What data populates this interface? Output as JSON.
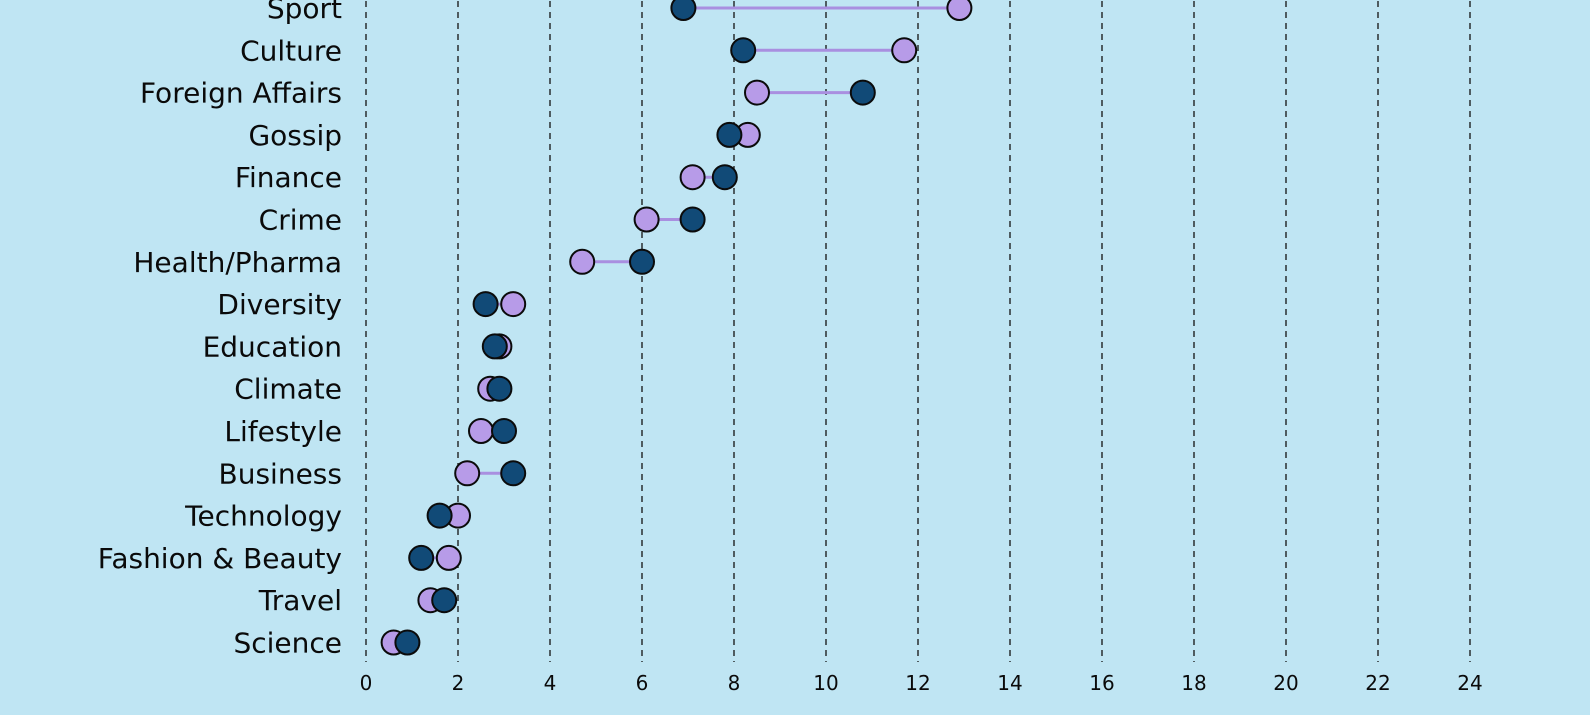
{
  "colors": {
    "background": "#bfe5f3",
    "series_a": "#b79be8",
    "series_b": "#114a77",
    "connector": "#a98fe0",
    "grid": "#111111"
  },
  "chart_data": {
    "type": "scatter",
    "subtype": "dumbbell",
    "title": "",
    "xlabel": "",
    "ylabel": "",
    "xlim": [
      0,
      24
    ],
    "x_ticks": [
      0,
      2,
      4,
      6,
      8,
      10,
      12,
      14,
      16,
      18,
      20,
      22,
      24
    ],
    "grid": "vertical dashed",
    "legend": "none",
    "categories": [
      "Sport",
      "Culture",
      "Foreign Affairs",
      "Gossip",
      "Finance",
      "Crime",
      "Health/Pharma",
      "Diversity",
      "Education",
      "Climate",
      "Lifestyle",
      "Business",
      "Technology",
      "Fashion & Beauty",
      "Travel",
      "Science"
    ],
    "series": [
      {
        "color": "#b79be8",
        "values": [
          12.9,
          11.7,
          8.5,
          8.3,
          7.1,
          6.1,
          4.7,
          3.2,
          2.9,
          2.7,
          2.5,
          2.2,
          2.0,
          1.8,
          1.4,
          0.6
        ]
      },
      {
        "color": "#114a77",
        "values": [
          6.9,
          8.2,
          10.8,
          7.9,
          7.8,
          7.1,
          6.0,
          2.6,
          2.8,
          2.9,
          3.0,
          3.2,
          1.6,
          1.2,
          1.7,
          0.9
        ]
      }
    ]
  }
}
